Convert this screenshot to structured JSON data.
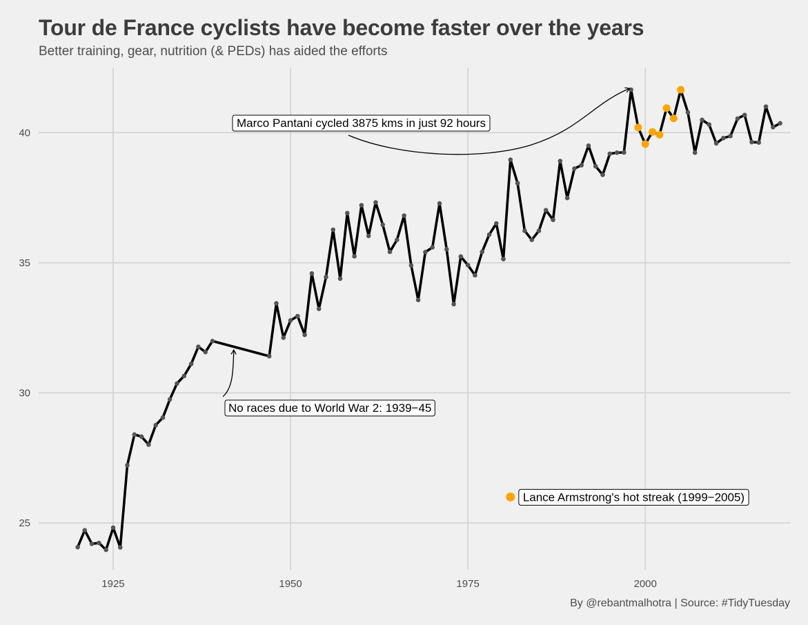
{
  "header": {
    "title": "Tour de France cyclists have become faster over the years",
    "subtitle": "Better training, gear, nutrition (& PEDs) has aided the efforts"
  },
  "caption": "By @rebantmalhotra | Source: #TidyTuesday",
  "colors": {
    "background": "#f0f0f0",
    "grid": "#d2d2d2",
    "line": "#000000",
    "highlight": "#ffa500"
  },
  "chart_data": {
    "type": "line",
    "title": "Tour de France cyclists have become faster over the years",
    "subtitle": "Better training, gear, nutrition (& PEDs) has aided the efforts",
    "xlabel": "",
    "ylabel": "",
    "xlim": [
      1914.5,
      2020.5
    ],
    "ylim": [
      23.2,
      42.5
    ],
    "x_ticks": [
      1925,
      1950,
      1975,
      2000
    ],
    "y_ticks": [
      25,
      30,
      35,
      40
    ],
    "grid": true,
    "highlight_range": [
      1999,
      2005
    ],
    "x": [
      1920,
      1921,
      1922,
      1923,
      1924,
      1925,
      1926,
      1927,
      1928,
      1929,
      1930,
      1931,
      1932,
      1933,
      1934,
      1935,
      1936,
      1937,
      1938,
      1939,
      1947,
      1948,
      1949,
      1950,
      1951,
      1952,
      1953,
      1954,
      1955,
      1956,
      1957,
      1958,
      1959,
      1960,
      1961,
      1962,
      1963,
      1964,
      1965,
      1966,
      1967,
      1968,
      1969,
      1970,
      1971,
      1972,
      1973,
      1974,
      1975,
      1976,
      1977,
      1978,
      1979,
      1980,
      1981,
      1982,
      1983,
      1984,
      1985,
      1986,
      1987,
      1988,
      1989,
      1990,
      1991,
      1992,
      1993,
      1994,
      1995,
      1996,
      1997,
      1998,
      1999,
      2000,
      2001,
      2002,
      2003,
      2004,
      2005,
      2006,
      2007,
      2008,
      2009,
      2010,
      2011,
      2012,
      2013,
      2014,
      2015,
      2016,
      2017,
      2018,
      2019
    ],
    "values": [
      24.07,
      24.72,
      24.2,
      24.23,
      23.97,
      24.82,
      24.06,
      27.22,
      28.4,
      28.32,
      28.01,
      28.76,
      29.05,
      29.75,
      30.36,
      30.65,
      31.11,
      31.77,
      31.57,
      31.99,
      31.41,
      33.44,
      32.12,
      32.78,
      32.95,
      32.23,
      34.59,
      33.23,
      34.45,
      36.27,
      34.39,
      36.91,
      35.25,
      37.21,
      36.03,
      37.32,
      36.46,
      35.42,
      35.88,
      36.81,
      34.9,
      33.57,
      35.41,
      35.59,
      37.28,
      35.52,
      33.41,
      35.24,
      34.91,
      34.52,
      35.42,
      36.08,
      36.51,
      35.14,
      38.96,
      38.06,
      36.23,
      35.88,
      36.23,
      37.02,
      36.65,
      38.91,
      37.49,
      38.62,
      38.75,
      39.5,
      38.71,
      38.38,
      39.19,
      39.23,
      39.24,
      41.65,
      40.2,
      39.56,
      40.03,
      39.92,
      40.94,
      40.55,
      41.65,
      40.78,
      39.23,
      40.49,
      40.31,
      39.59,
      39.79,
      39.87,
      40.54,
      40.68,
      39.64,
      39.62,
      41.0,
      40.21,
      40.36
    ]
  },
  "annotations": {
    "pantani": {
      "text": "Marco Pantani cycled 3875 kms in just 92 hours",
      "year": 1998,
      "speed": 41.65
    },
    "ww2": {
      "text": "No races due to World War 2: 1939−45",
      "year": 1942,
      "speed": 31.65
    },
    "armstrong": {
      "text": "Lance Armstrong's hot streak (1999−2005)",
      "year": 1981,
      "speed": 26.0
    }
  }
}
